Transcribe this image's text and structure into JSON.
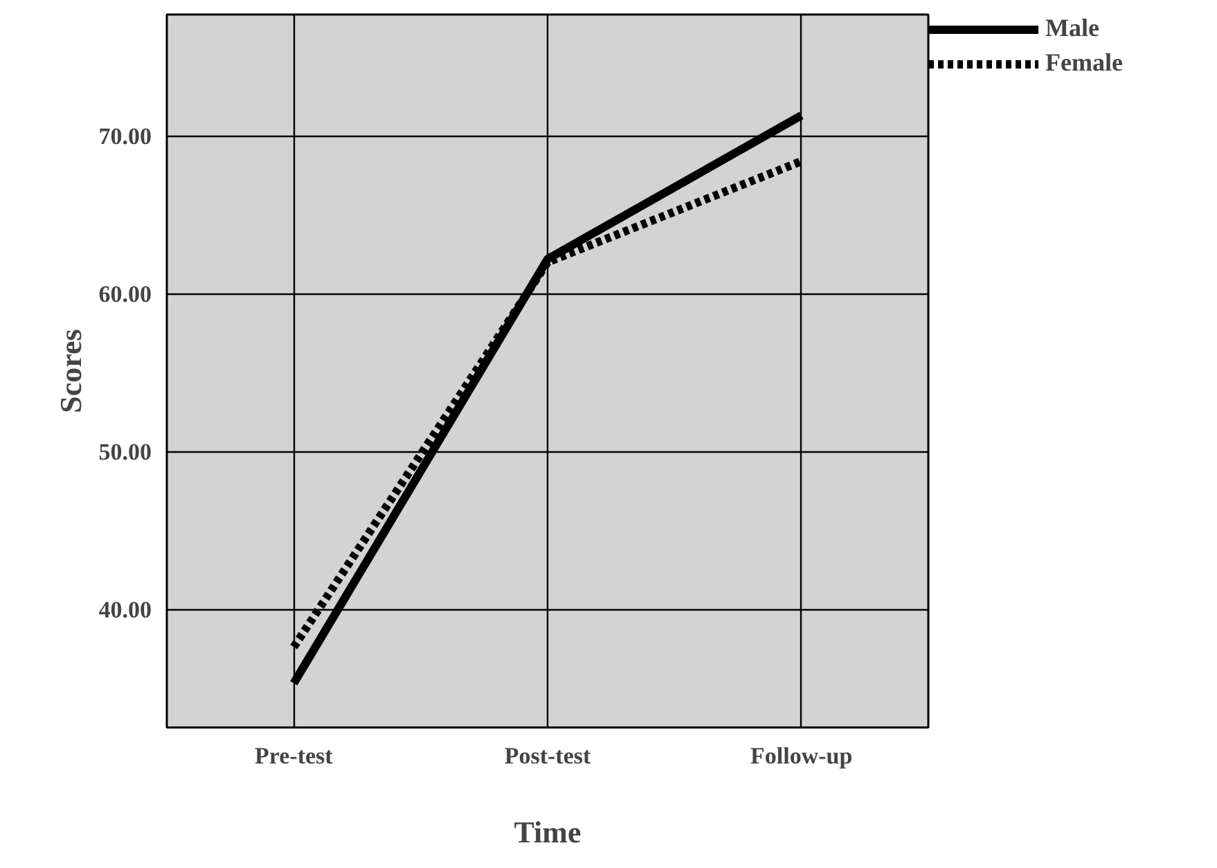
{
  "chart_data": {
    "type": "line",
    "xlabel": "Time",
    "ylabel": "Scores",
    "categories": [
      "Pre-test",
      "Post-test",
      "Follow-up"
    ],
    "series": [
      {
        "name": "Male",
        "color": "#000000",
        "values": [
          35.3,
          62.2,
          71.3
        ],
        "line_style": "solid"
      },
      {
        "name": "Female",
        "color": "#000000",
        "values": [
          37.6,
          62.0,
          68.4
        ],
        "line_style": "dotted"
      }
    ],
    "ylim": [
      32.5,
      77.7
    ],
    "yticks": [
      {
        "value": 40,
        "label": "40.00"
      },
      {
        "value": 50,
        "label": "50.00"
      },
      {
        "value": 60,
        "label": "60.00"
      },
      {
        "value": 70,
        "label": "70.00"
      }
    ],
    "grid": true,
    "legend": "top right",
    "marker": "none"
  }
}
